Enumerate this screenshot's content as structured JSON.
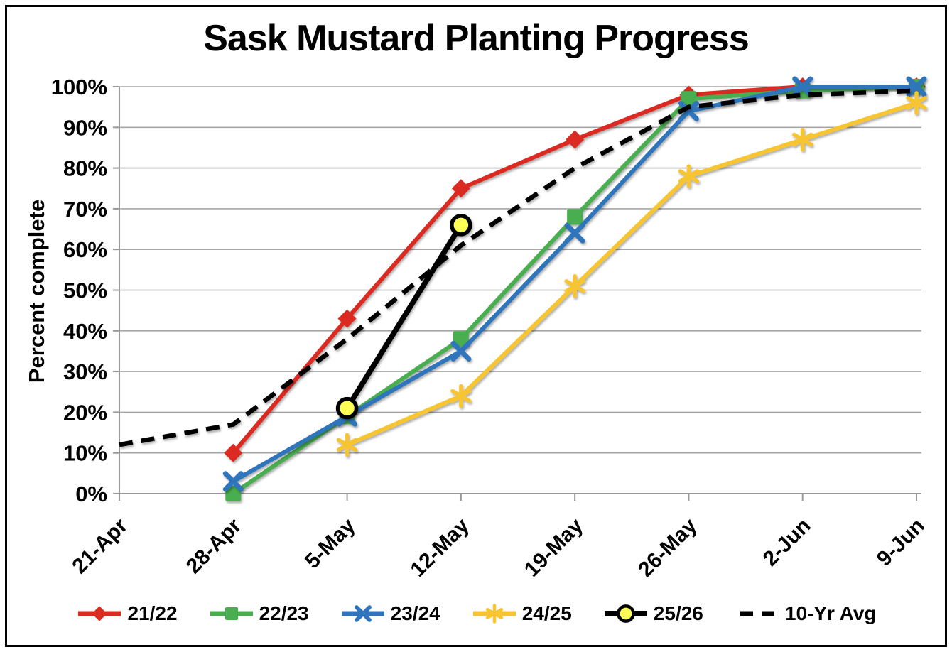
{
  "chart_data": {
    "type": "line",
    "title": "Sask Mustard Planting Progress",
    "ylabel": "Percent complete",
    "ylim": [
      0,
      100
    ],
    "ytick_step": 10,
    "ytick_format": "percent",
    "grid": "horizontal",
    "legend_position": "bottom",
    "categories": [
      "21-Apr",
      "28-Apr",
      "5-May",
      "12-May",
      "19-May",
      "26-May",
      "2-Jun",
      "9-Jun"
    ],
    "series": [
      {
        "name": "21/22",
        "color": "#DA2C20",
        "marker": "diamond",
        "line": "solid",
        "values": [
          null,
          10,
          43,
          75,
          87,
          98,
          100,
          100
        ]
      },
      {
        "name": "22/23",
        "color": "#4AAE50",
        "marker": "square",
        "line": "solid",
        "values": [
          null,
          0,
          19,
          38,
          68,
          97,
          99,
          100
        ]
      },
      {
        "name": "23/24",
        "color": "#2F74BC",
        "marker": "x",
        "line": "solid",
        "values": [
          null,
          3,
          19,
          35,
          64,
          94,
          100,
          100
        ]
      },
      {
        "name": "24/25",
        "color": "#F7C433",
        "marker": "asterisk",
        "line": "solid",
        "values": [
          null,
          null,
          12,
          24,
          51,
          78,
          87,
          96
        ]
      },
      {
        "name": "25/26",
        "color": "#000000",
        "marker": "circle",
        "marker_fill": "#FEFF54",
        "line": "solid",
        "values": [
          null,
          null,
          21,
          66,
          null,
          null,
          null,
          null
        ]
      },
      {
        "name": "10-Yr Avg",
        "color": "#000000",
        "marker": "none",
        "line": "dashed",
        "values": [
          12,
          17,
          38,
          61,
          80,
          95,
          98,
          99
        ]
      }
    ],
    "colors": {
      "gridline": "#A6A6A6",
      "axis": "#9A9A9A",
      "text": "#000000",
      "background": "#FFFFFF"
    }
  }
}
